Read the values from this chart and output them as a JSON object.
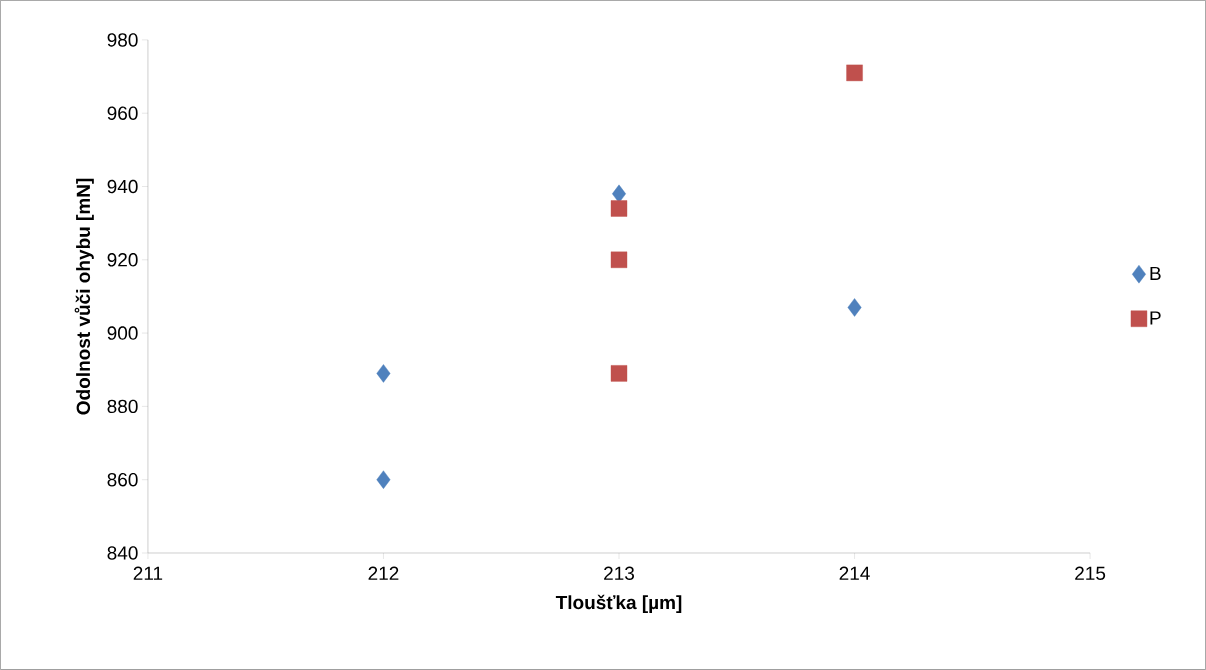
{
  "chart_data": {
    "type": "scatter",
    "xlabel": "Tloušťka [µm]",
    "ylabel": "Odolnost vůči ohybu [mN]",
    "series": [
      {
        "name": "B",
        "color": "#4f81bd",
        "marker": "diamond",
        "x": [
          212,
          212,
          213,
          214
        ],
        "values": [
          889,
          860,
          938,
          907
        ]
      },
      {
        "name": "P",
        "color": "#c0504d",
        "marker": "square",
        "x": [
          213,
          213,
          213,
          214
        ],
        "values": [
          934,
          920,
          889,
          971
        ]
      }
    ],
    "xlim": [
      211,
      215
    ],
    "xticks": [
      211,
      212,
      213,
      214,
      215
    ],
    "ylim": [
      840,
      980
    ],
    "yticks": [
      840,
      860,
      880,
      900,
      920,
      940,
      960,
      980
    ],
    "grid": false,
    "legend": "right"
  }
}
